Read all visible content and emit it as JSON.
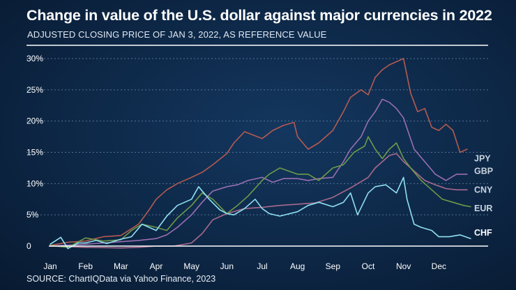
{
  "header": {
    "title": "Change in value of the U.S. dollar against major currencies in 2022",
    "subtitle": "ADJUSTED CLOSING PRICE OF JAN 3, 2022, AS REFERENCE VALUE"
  },
  "footer": {
    "source": "SOURCE: ChartIQData via Yahoo Finance, 2023"
  },
  "chart_data": {
    "type": "line",
    "title": "Change in value of the U.S. dollar against major currencies in 2022",
    "subtitle": "ADJUSTED CLOSING PRICE OF JAN 3, 2022, AS REFERENCE VALUE",
    "xlabel": "",
    "ylabel": "",
    "ylim": [
      0,
      30
    ],
    "xlim": [
      0,
      12
    ],
    "x_ticks": [
      {
        "value": 0,
        "label": "Jan"
      },
      {
        "value": 1,
        "label": "Feb"
      },
      {
        "value": 2,
        "label": "Mar"
      },
      {
        "value": 3,
        "label": "Apr"
      },
      {
        "value": 4,
        "label": "May"
      },
      {
        "value": 5,
        "label": "Jun"
      },
      {
        "value": 6,
        "label": "Jul"
      },
      {
        "value": 7,
        "label": "Aug"
      },
      {
        "value": 8,
        "label": "Sep"
      },
      {
        "value": 9,
        "label": "Oct"
      },
      {
        "value": 10,
        "label": "Nov"
      },
      {
        "value": 11,
        "label": "Dec"
      }
    ],
    "y_ticks": [
      {
        "value": 0,
        "label": "0"
      },
      {
        "value": 5,
        "label": "5%"
      },
      {
        "value": 10,
        "label": "10%"
      },
      {
        "value": 15,
        "label": "15%"
      },
      {
        "value": 20,
        "label": "20%"
      },
      {
        "value": 25,
        "label": "25%"
      },
      {
        "value": 30,
        "label": "30%"
      }
    ],
    "series": [
      {
        "name": "JPY",
        "color": "#b55a50",
        "x": [
          0,
          0.5,
          1,
          1.5,
          2,
          2.5,
          2.8,
          3,
          3.3,
          3.6,
          4,
          4.3,
          4.6,
          5,
          5.2,
          5.5,
          6,
          6.3,
          6.6,
          6.9,
          7,
          7.3,
          7.6,
          8,
          8.3,
          8.5,
          8.8,
          9,
          9.2,
          9.4,
          9.6,
          9.8,
          10,
          10.2,
          10.4,
          10.6,
          10.8,
          11,
          11.2,
          11.4,
          11.6,
          11.8
        ],
        "values": [
          0.1,
          0.6,
          0.8,
          1.5,
          1.7,
          3.5,
          5.8,
          7.5,
          9,
          10,
          11,
          11.8,
          13,
          14.8,
          16.5,
          18.3,
          17.2,
          18.5,
          19.3,
          19.8,
          17.5,
          15.5,
          16.5,
          18.5,
          21.5,
          23.8,
          25,
          24.2,
          27,
          28.2,
          29,
          29.5,
          30,
          24.5,
          21.5,
          22,
          19,
          18.5,
          19.5,
          18.5,
          15,
          15.5
        ]
      },
      {
        "name": "GBP",
        "color": "#9a6fb2",
        "x": [
          0,
          1,
          2,
          2.5,
          3,
          3.3,
          3.6,
          4,
          4.3,
          4.6,
          5,
          5.3,
          5.6,
          6,
          6.3,
          6.6,
          7,
          7.3,
          7.6,
          8,
          8.3,
          8.5,
          8.8,
          9,
          9.2,
          9.4,
          9.6,
          9.8,
          10,
          10.3,
          10.6,
          10.9,
          11.2,
          11.5,
          11.8
        ],
        "values": [
          0,
          0.3,
          0.7,
          0.9,
          1.2,
          1.8,
          3,
          5,
          7,
          8.8,
          9.5,
          9.8,
          10.5,
          11,
          10.2,
          10.8,
          10.8,
          10.5,
          10.8,
          11,
          13.5,
          15.5,
          17.5,
          20,
          21.5,
          23.5,
          23,
          22,
          20.5,
          15.5,
          13.5,
          11.5,
          10.5,
          11.5,
          11.5
        ]
      },
      {
        "name": "CNY",
        "color": "#a96a8d",
        "x": [
          0,
          1,
          2,
          2.5,
          3,
          3.5,
          4,
          4.3,
          4.6,
          5,
          5.5,
          6,
          6.5,
          7,
          7.5,
          8,
          8.5,
          8.8,
          9,
          9.2,
          9.4,
          9.6,
          9.8,
          10,
          10.3,
          10.6,
          10.9,
          11.2,
          11.5,
          11.8
        ],
        "values": [
          0,
          -0.2,
          -0.3,
          -0.2,
          0,
          0,
          0.5,
          2,
          4.2,
          5.2,
          6,
          6.2,
          6.5,
          6.7,
          6.9,
          7.8,
          9.3,
          10.3,
          11,
          12.5,
          13.5,
          14.5,
          14.8,
          13.5,
          12,
          10.5,
          9.8,
          9.2,
          9,
          9
        ]
      },
      {
        "name": "EUR",
        "color": "#6e9a4a",
        "x": [
          0,
          0.5,
          1,
          1.5,
          2,
          2.3,
          2.6,
          3,
          3.3,
          3.6,
          4,
          4.3,
          4.6,
          5,
          5.3,
          5.6,
          6,
          6.2,
          6.5,
          7,
          7.3,
          7.6,
          8,
          8.3,
          8.6,
          8.9,
          9,
          9.2,
          9.4,
          9.6,
          9.8,
          10,
          10.2,
          10.5,
          10.8,
          11.1,
          11.4,
          11.7,
          11.9
        ],
        "values": [
          0.1,
          -0.2,
          1.3,
          0.8,
          1,
          2.5,
          3.5,
          3,
          2.5,
          4.5,
          6.5,
          8.5,
          7.5,
          5.2,
          6.5,
          8,
          10.5,
          11.5,
          12.5,
          11.5,
          11.5,
          10.5,
          12.5,
          13,
          15,
          16,
          17.5,
          15.5,
          14,
          15.5,
          16.5,
          14,
          12.5,
          10.5,
          9,
          7.5,
          7,
          6.5,
          6.3
        ]
      },
      {
        "name": "CHF",
        "color": "#8fe0f0",
        "x": [
          0,
          0.3,
          0.5,
          0.8,
          1,
          1.3,
          1.6,
          2,
          2.3,
          2.6,
          3,
          3.3,
          3.6,
          4,
          4.2,
          4.5,
          4.8,
          5,
          5.2,
          5.5,
          5.8,
          6,
          6.2,
          6.5,
          7,
          7.3,
          7.6,
          8,
          8.3,
          8.5,
          8.7,
          9,
          9.2,
          9.5,
          9.8,
          10,
          10.1,
          10.3,
          10.5,
          10.8,
          11,
          11.3,
          11.6,
          11.9
        ],
        "values": [
          0.3,
          1.4,
          -0.4,
          0.5,
          0.5,
          0.9,
          0.4,
          1.1,
          1.5,
          3.5,
          2.5,
          4.8,
          6.5,
          7.5,
          9.5,
          7.5,
          5.8,
          5.2,
          5,
          6,
          7.5,
          6,
          5.2,
          4.8,
          5.5,
          6.5,
          7,
          6.3,
          7,
          8.5,
          5,
          8.5,
          9.5,
          9.8,
          8.5,
          11,
          7.5,
          3.5,
          3,
          2.5,
          1.5,
          1.5,
          1.8,
          1.2
        ]
      }
    ]
  }
}
